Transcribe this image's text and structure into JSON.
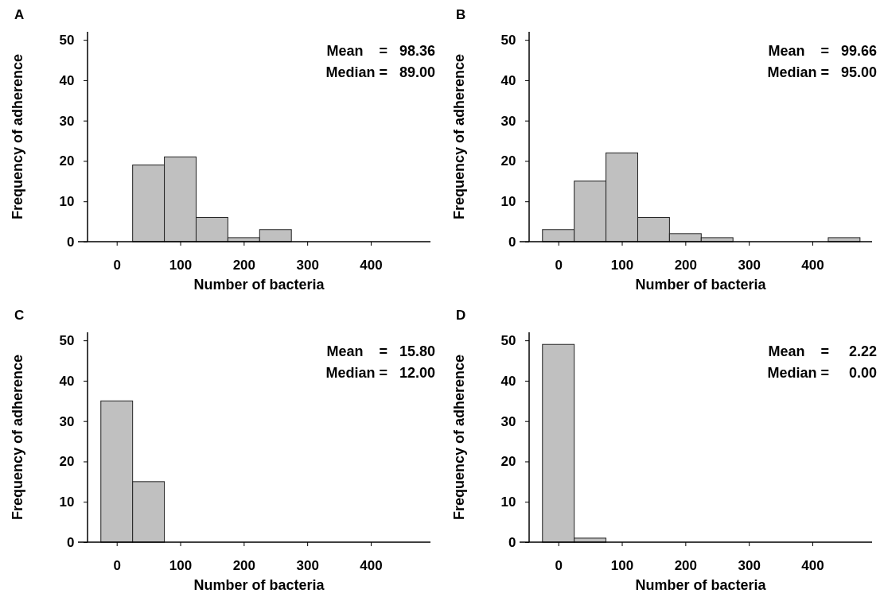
{
  "chart_data": [
    {
      "type": "histogram",
      "title": "A",
      "xlabel": "Number of bacteria",
      "ylabel": "Frequency of adherence",
      "bins": [
        -25,
        25,
        75,
        125,
        175,
        225,
        275,
        325,
        375,
        425,
        475
      ],
      "values": [
        0,
        19,
        21,
        6,
        1,
        3,
        0,
        0,
        0,
        0
      ],
      "color": "#c0c0c0",
      "xlim": [
        -46,
        494
      ],
      "ylim": [
        0,
        52
      ],
      "xticks": [
        0,
        100,
        200,
        300,
        400
      ],
      "yticks": [
        0,
        10,
        20,
        30,
        40,
        50
      ],
      "annotations": [
        "Mean    =   98.36",
        "Median =   89.00"
      ]
    },
    {
      "type": "histogram",
      "title": "B",
      "xlabel": "Number of bacteria",
      "ylabel": "Frequency of adherence",
      "bins": [
        -25,
        25,
        75,
        125,
        175,
        225,
        275,
        325,
        375,
        425,
        475
      ],
      "values": [
        3,
        15,
        22,
        6,
        2,
        1,
        0,
        0,
        0,
        1
      ],
      "color": "#c0c0c0",
      "xlim": [
        -46,
        494
      ],
      "ylim": [
        0,
        52
      ],
      "xticks": [
        0,
        100,
        200,
        300,
        400
      ],
      "yticks": [
        0,
        10,
        20,
        30,
        40,
        50
      ],
      "annotations": [
        "Mean    =   99.66",
        "Median =   95.00"
      ]
    },
    {
      "type": "histogram",
      "title": "C",
      "xlabel": "Number of bacteria",
      "ylabel": "Frequency of adherence",
      "bins": [
        -25,
        25,
        75,
        125,
        175,
        225,
        275,
        325,
        375,
        425,
        475
      ],
      "values": [
        35,
        15,
        0,
        0,
        0,
        0,
        0,
        0,
        0,
        0
      ],
      "color": "#c0c0c0",
      "xlim": [
        -46,
        494
      ],
      "ylim": [
        0,
        52
      ],
      "xticks": [
        0,
        100,
        200,
        300,
        400
      ],
      "yticks": [
        0,
        10,
        20,
        30,
        40,
        50
      ],
      "annotations": [
        "Mean    =   15.80",
        "Median =   12.00"
      ]
    },
    {
      "type": "histogram",
      "title": "D",
      "xlabel": "Number of bacteria",
      "ylabel": "Frequency of adherence",
      "bins": [
        -25,
        25,
        75,
        125,
        175,
        225,
        275,
        325,
        375,
        425,
        475
      ],
      "values": [
        49,
        1,
        0,
        0,
        0,
        0,
        0,
        0,
        0,
        0
      ],
      "color": "#c0c0c0",
      "xlim": [
        -46,
        494
      ],
      "ylim": [
        0,
        52
      ],
      "xticks": [
        0,
        100,
        200,
        300,
        400
      ],
      "yticks": [
        0,
        10,
        20,
        30,
        40,
        50
      ],
      "annotations": [
        "Mean    =     2.22",
        "Median =     0.00"
      ]
    }
  ]
}
